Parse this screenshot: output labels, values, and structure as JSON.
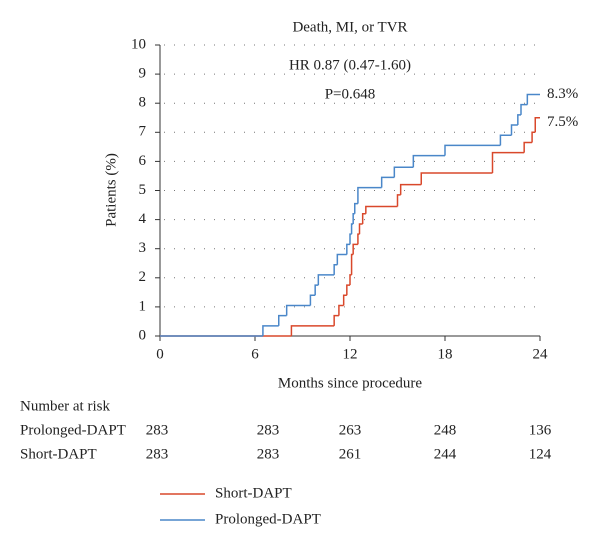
{
  "chart_data": {
    "type": "step",
    "title": "Death, MI, or TVR",
    "annotations": [
      "HR 0.87 (0.47-1.60)",
      "P=0.648"
    ],
    "x_label": "Months since procedure",
    "y_label": "Patients (%)",
    "xlim": [
      0,
      24
    ],
    "xticks": [
      0,
      6,
      12,
      18,
      24
    ],
    "ylim": [
      0,
      10
    ],
    "yticks": [
      0,
      1,
      2,
      3,
      4,
      5,
      6,
      7,
      8,
      9,
      10
    ],
    "grid": true,
    "series": [
      {
        "name": "Short-DAPT",
        "color": "#d9482b",
        "x": [
          0,
          8.3,
          11.0,
          11.3,
          11.6,
          11.8,
          12.0,
          12.1,
          12.2,
          12.5,
          12.6,
          12.8,
          13.0,
          15.0,
          15.2,
          16.5,
          21.0,
          23.0,
          23.5,
          23.7,
          24
        ],
        "values": [
          0,
          0.35,
          0.7,
          1.05,
          1.4,
          1.75,
          2.1,
          2.8,
          3.15,
          3.5,
          3.85,
          4.2,
          4.45,
          4.85,
          5.2,
          5.6,
          6.3,
          6.65,
          7.0,
          7.5,
          7.5
        ],
        "end_label": "7.5%"
      },
      {
        "name": "Prolonged-DAPT",
        "color": "#4a87c9",
        "x": [
          0,
          6.5,
          7.5,
          8.0,
          9.5,
          9.8,
          10.0,
          11.0,
          11.2,
          11.8,
          12.0,
          12.1,
          12.2,
          12.3,
          12.5,
          14.0,
          14.8,
          16.0,
          18.0,
          21.5,
          22.2,
          22.6,
          22.8,
          23.2,
          24
        ],
        "values": [
          0,
          0.35,
          0.7,
          1.05,
          1.4,
          1.75,
          2.1,
          2.45,
          2.8,
          3.15,
          3.5,
          3.85,
          4.2,
          4.55,
          5.1,
          5.45,
          5.8,
          6.2,
          6.55,
          6.9,
          7.25,
          7.6,
          7.95,
          8.3,
          8.3
        ],
        "end_label": "8.3%"
      }
    ],
    "risk_table": {
      "title": "Number at risk",
      "rows": [
        {
          "name": "Prolonged-DAPT",
          "values": [
            283,
            283,
            263,
            248,
            136
          ]
        },
        {
          "name": "Short-DAPT",
          "values": [
            283,
            283,
            261,
            244,
            124
          ]
        }
      ]
    }
  }
}
